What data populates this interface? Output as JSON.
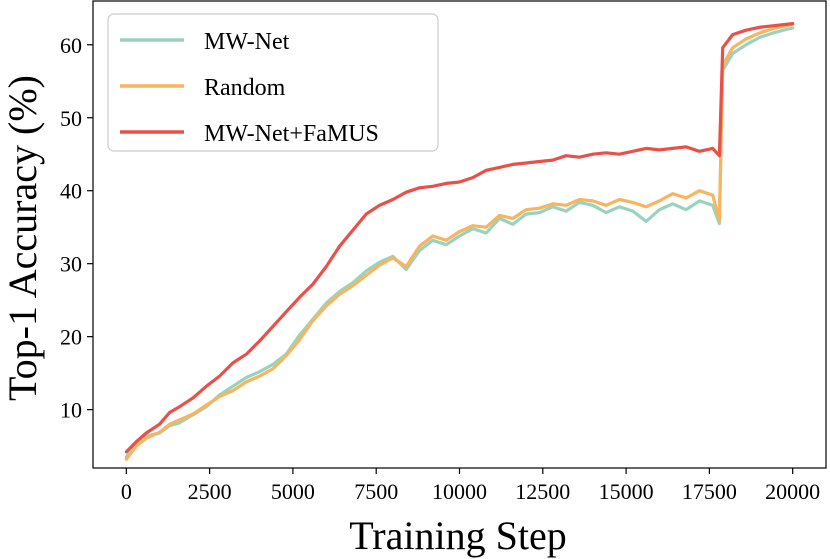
{
  "chart_data": {
    "type": "line",
    "title": "",
    "xlabel": "Training Step",
    "ylabel": "Top-1 Accuracy (%)",
    "xlim": [
      -1000,
      21000
    ],
    "ylim": [
      2,
      66
    ],
    "xticks": [
      0,
      2500,
      5000,
      7500,
      10000,
      12500,
      15000,
      17500,
      20000
    ],
    "yticks": [
      10,
      20,
      30,
      40,
      50,
      60
    ],
    "legend_position": "upper-left",
    "grid": false,
    "series": [
      {
        "name": "MW-Net",
        "color": "#99d3c0",
        "points": [
          [
            0,
            3.5
          ],
          [
            300,
            5.2
          ],
          [
            600,
            6.4
          ],
          [
            1000,
            6.8
          ],
          [
            1300,
            7.8
          ],
          [
            1600,
            8.2
          ],
          [
            2000,
            9.3
          ],
          [
            2400,
            10.4
          ],
          [
            2800,
            12.0
          ],
          [
            3200,
            13.2
          ],
          [
            3600,
            14.4
          ],
          [
            4000,
            15.2
          ],
          [
            4400,
            16.2
          ],
          [
            4800,
            17.6
          ],
          [
            5200,
            20.2
          ],
          [
            5600,
            22.4
          ],
          [
            6000,
            24.6
          ],
          [
            6400,
            26.2
          ],
          [
            6800,
            27.4
          ],
          [
            7200,
            29.0
          ],
          [
            7600,
            30.2
          ],
          [
            8000,
            31.0
          ],
          [
            8400,
            29.2
          ],
          [
            8800,
            31.8
          ],
          [
            9200,
            33.2
          ],
          [
            9600,
            32.6
          ],
          [
            10000,
            33.8
          ],
          [
            10400,
            34.8
          ],
          [
            10800,
            34.2
          ],
          [
            11200,
            36.2
          ],
          [
            11600,
            35.4
          ],
          [
            12000,
            36.8
          ],
          [
            12400,
            37.0
          ],
          [
            12800,
            37.8
          ],
          [
            13200,
            37.2
          ],
          [
            13600,
            38.4
          ],
          [
            14000,
            38.0
          ],
          [
            14400,
            37.0
          ],
          [
            14800,
            37.8
          ],
          [
            15200,
            37.2
          ],
          [
            15600,
            35.8
          ],
          [
            16000,
            37.4
          ],
          [
            16400,
            38.2
          ],
          [
            16800,
            37.4
          ],
          [
            17200,
            38.6
          ],
          [
            17600,
            38.0
          ],
          [
            17800,
            35.5
          ],
          [
            17900,
            56.5
          ],
          [
            18200,
            58.8
          ],
          [
            18600,
            60.0
          ],
          [
            19000,
            61.0
          ],
          [
            19400,
            61.6
          ],
          [
            19800,
            62.1
          ],
          [
            20000,
            62.3
          ]
        ]
      },
      {
        "name": "Random",
        "color": "#f8b45e",
        "points": [
          [
            0,
            3.2
          ],
          [
            300,
            5.0
          ],
          [
            600,
            6.1
          ],
          [
            1000,
            6.9
          ],
          [
            1300,
            8.0
          ],
          [
            1600,
            8.6
          ],
          [
            2000,
            9.4
          ],
          [
            2400,
            10.6
          ],
          [
            2800,
            11.8
          ],
          [
            3200,
            12.6
          ],
          [
            3600,
            13.8
          ],
          [
            4000,
            14.6
          ],
          [
            4400,
            15.6
          ],
          [
            4800,
            17.4
          ],
          [
            5200,
            19.6
          ],
          [
            5600,
            22.2
          ],
          [
            6000,
            24.2
          ],
          [
            6400,
            25.8
          ],
          [
            6800,
            27.0
          ],
          [
            7200,
            28.4
          ],
          [
            7600,
            29.8
          ],
          [
            8000,
            30.8
          ],
          [
            8400,
            29.6
          ],
          [
            8800,
            32.4
          ],
          [
            9200,
            33.8
          ],
          [
            9600,
            33.2
          ],
          [
            10000,
            34.4
          ],
          [
            10400,
            35.2
          ],
          [
            10800,
            35.0
          ],
          [
            11200,
            36.6
          ],
          [
            11600,
            36.2
          ],
          [
            12000,
            37.4
          ],
          [
            12400,
            37.6
          ],
          [
            12800,
            38.2
          ],
          [
            13200,
            38.0
          ],
          [
            13600,
            38.8
          ],
          [
            14000,
            38.6
          ],
          [
            14400,
            38.0
          ],
          [
            14800,
            38.8
          ],
          [
            15200,
            38.4
          ],
          [
            15600,
            37.8
          ],
          [
            16000,
            38.6
          ],
          [
            16400,
            39.6
          ],
          [
            16800,
            39.0
          ],
          [
            17200,
            40.0
          ],
          [
            17600,
            39.4
          ],
          [
            17800,
            36.0
          ],
          [
            17900,
            57.2
          ],
          [
            18200,
            59.6
          ],
          [
            18600,
            60.8
          ],
          [
            19000,
            61.6
          ],
          [
            19400,
            62.2
          ],
          [
            19800,
            62.6
          ],
          [
            20000,
            62.8
          ]
        ]
      },
      {
        "name": "MW-Net+FaMUS",
        "color": "#e8514a",
        "points": [
          [
            0,
            4.2
          ],
          [
            300,
            5.6
          ],
          [
            600,
            6.8
          ],
          [
            1000,
            8.0
          ],
          [
            1300,
            9.6
          ],
          [
            1600,
            10.4
          ],
          [
            2000,
            11.6
          ],
          [
            2400,
            13.2
          ],
          [
            2800,
            14.6
          ],
          [
            3200,
            16.4
          ],
          [
            3600,
            17.6
          ],
          [
            4000,
            19.4
          ],
          [
            4400,
            21.4
          ],
          [
            4800,
            23.4
          ],
          [
            5200,
            25.4
          ],
          [
            5600,
            27.2
          ],
          [
            6000,
            29.6
          ],
          [
            6400,
            32.4
          ],
          [
            6800,
            34.6
          ],
          [
            7200,
            36.8
          ],
          [
            7600,
            38.0
          ],
          [
            8000,
            38.8
          ],
          [
            8400,
            39.8
          ],
          [
            8800,
            40.4
          ],
          [
            9200,
            40.6
          ],
          [
            9600,
            41.0
          ],
          [
            10000,
            41.2
          ],
          [
            10400,
            41.8
          ],
          [
            10800,
            42.8
          ],
          [
            11200,
            43.2
          ],
          [
            11600,
            43.6
          ],
          [
            12000,
            43.8
          ],
          [
            12400,
            44.0
          ],
          [
            12800,
            44.2
          ],
          [
            13200,
            44.8
          ],
          [
            13600,
            44.6
          ],
          [
            14000,
            45.0
          ],
          [
            14400,
            45.2
          ],
          [
            14800,
            45.0
          ],
          [
            15200,
            45.4
          ],
          [
            15600,
            45.8
          ],
          [
            16000,
            45.6
          ],
          [
            16400,
            45.8
          ],
          [
            16800,
            46.0
          ],
          [
            17200,
            45.4
          ],
          [
            17600,
            45.8
          ],
          [
            17800,
            44.8
          ],
          [
            17900,
            59.6
          ],
          [
            18200,
            61.4
          ],
          [
            18600,
            62.0
          ],
          [
            19000,
            62.4
          ],
          [
            19400,
            62.6
          ],
          [
            19800,
            62.8
          ],
          [
            20000,
            62.9
          ]
        ]
      }
    ]
  }
}
